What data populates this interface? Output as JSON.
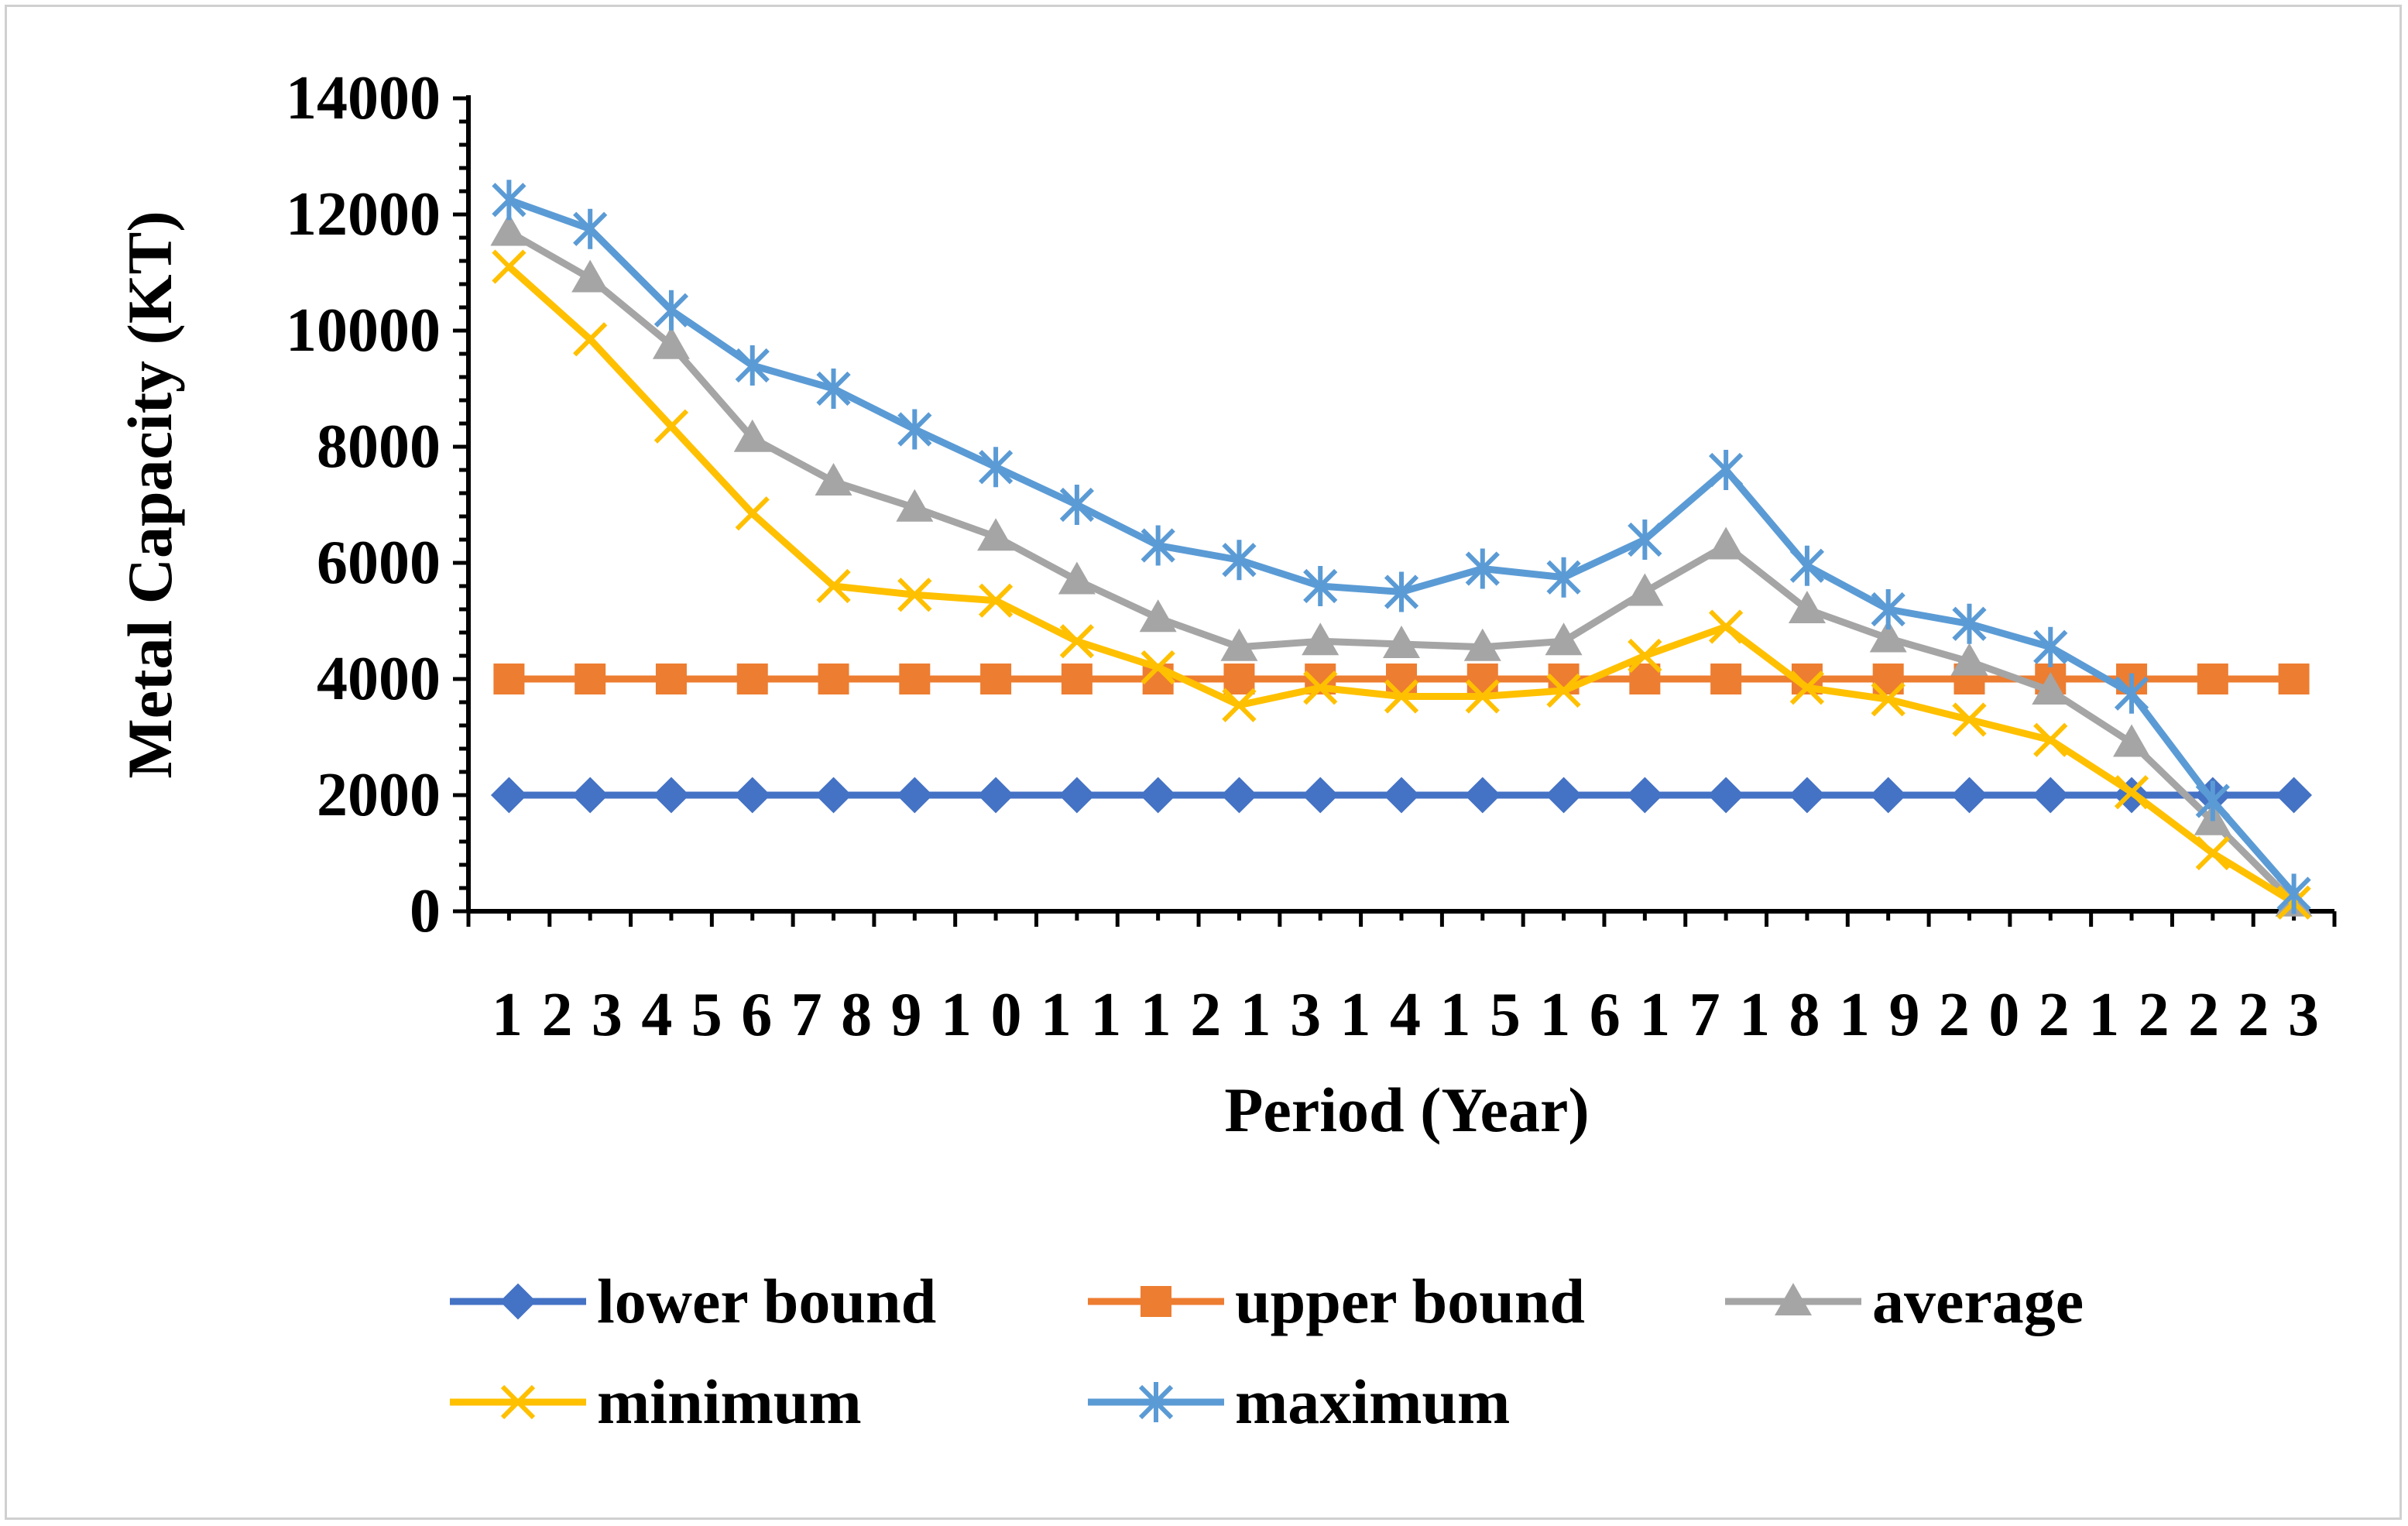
{
  "chart_data": {
    "type": "line",
    "title": "",
    "xlabel": "Period (Year)",
    "ylabel": "Metal Capacity (KT)",
    "ylim": [
      0,
      14000
    ],
    "ytick_step": 2000,
    "ytick_labels": [
      "0",
      "2000",
      "4000",
      "6000",
      "8000",
      "10000",
      "12000",
      "14000"
    ],
    "x_tick_text": [
      "1",
      "2",
      "3",
      "4",
      "5",
      "6",
      "7",
      "8",
      "9",
      "1",
      "0",
      "1",
      "1",
      "1",
      "2",
      "1",
      "3",
      "1",
      "4",
      "1",
      "5",
      "1",
      "6",
      "1",
      "7",
      "1",
      "8",
      "1",
      "9",
      "2",
      "0",
      "2",
      "1",
      "2",
      "2",
      "2",
      "3"
    ],
    "x": [
      1,
      2,
      3,
      4,
      5,
      6,
      7,
      8,
      9,
      10,
      11,
      12,
      13,
      14,
      15,
      16,
      17,
      18,
      19,
      20,
      21,
      22,
      23
    ],
    "legend_position": "bottom",
    "series": [
      {
        "name": "lower bound",
        "color": "#4472C4",
        "marker": "diamond",
        "values": [
          2000,
          2000,
          2000,
          2000,
          2000,
          2000,
          2000,
          2000,
          2000,
          2000,
          2000,
          2000,
          2000,
          2000,
          2000,
          2000,
          2000,
          2000,
          2000,
          2000,
          2000,
          2000,
          2000
        ]
      },
      {
        "name": "upper bound",
        "color": "#ED7D31",
        "marker": "square",
        "values": [
          4000,
          4000,
          4000,
          4000,
          4000,
          4000,
          4000,
          4000,
          4000,
          4000,
          4000,
          4000,
          4000,
          4000,
          4000,
          4000,
          4000,
          4000,
          4000,
          4000,
          4000,
          4000,
          4000
        ]
      },
      {
        "name": "average",
        "color": "#A5A5A5",
        "marker": "triangle",
        "values": [
          11700,
          10900,
          9750,
          8150,
          7400,
          6950,
          6450,
          5700,
          5050,
          4550,
          4650,
          4600,
          4550,
          4650,
          5500,
          6300,
          5200,
          4700,
          4300,
          3800,
          2900,
          1550,
          150
        ]
      },
      {
        "name": "minimum",
        "color": "#FFC000",
        "marker": "x",
        "values": [
          11100,
          9850,
          8350,
          6850,
          5600,
          5450,
          5350,
          4650,
          4200,
          3550,
          3850,
          3700,
          3700,
          3800,
          4400,
          4900,
          3850,
          3650,
          3300,
          2950,
          2050,
          1000,
          150
        ]
      },
      {
        "name": "maximum",
        "color": "#5B9BD5",
        "marker": "asterisk",
        "values": [
          12250,
          11750,
          10350,
          9400,
          9000,
          8300,
          7650,
          7000,
          6300,
          6050,
          5600,
          5500,
          5900,
          5750,
          6400,
          7600,
          5950,
          5200,
          4950,
          4550,
          3750,
          1900,
          300
        ]
      }
    ]
  }
}
